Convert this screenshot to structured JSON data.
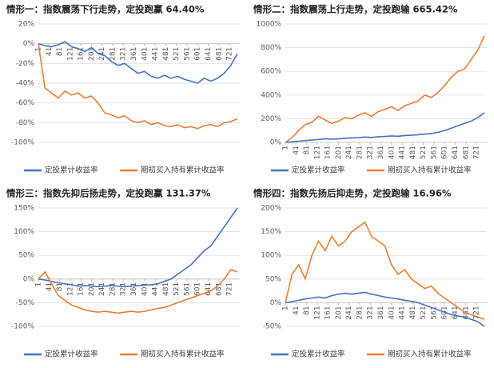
{
  "chart_data": [
    {
      "type": "line",
      "title": "情形一：指数震荡下行走势，定投跑赢 64.40%",
      "x": [
        1,
        26,
        51,
        76,
        101,
        126,
        151,
        176,
        201,
        226,
        251,
        276,
        301,
        326,
        351,
        376,
        401,
        426,
        451,
        476,
        501,
        526,
        551,
        576,
        601,
        626,
        651,
        676,
        701,
        726,
        751
      ],
      "xlim": [
        1,
        760
      ],
      "xticks": [
        1,
        41,
        81,
        121,
        161,
        201,
        241,
        281,
        321,
        361,
        401,
        441,
        481,
        521,
        561,
        601,
        641,
        681,
        721
      ],
      "ylim": [
        -100,
        20
      ],
      "yticks": [
        {
          "value": -100,
          "label": "-100%"
        },
        {
          "value": -80,
          "label": "-80%"
        },
        {
          "value": -60,
          "label": "-60%"
        },
        {
          "value": -40,
          "label": "-40%"
        },
        {
          "value": -20,
          "label": "-20%"
        },
        {
          "value": 0,
          "label": "0%"
        },
        {
          "value": 20,
          "label": "20%"
        }
      ],
      "series": [
        {
          "name": "定投累计收益率",
          "color": "#4472c4",
          "values": [
            0,
            -2,
            -3,
            -1,
            2,
            -3,
            -5,
            -8,
            -4,
            -10,
            -12,
            -18,
            -22,
            -20,
            -25,
            -30,
            -28,
            -33,
            -35,
            -32,
            -35,
            -33,
            -36,
            -38,
            -40,
            -35,
            -38,
            -35,
            -30,
            -22,
            -10
          ]
        },
        {
          "name": "期初买入持有累计收益率",
          "color": "#ed7d31",
          "values": [
            0,
            -45,
            -50,
            -55,
            -48,
            -52,
            -50,
            -55,
            -53,
            -60,
            -70,
            -72,
            -75,
            -73,
            -78,
            -80,
            -78,
            -82,
            -80,
            -83,
            -84,
            -82,
            -85,
            -84,
            -86,
            -83,
            -82,
            -84,
            -80,
            -79,
            -76
          ]
        }
      ]
    },
    {
      "type": "line",
      "title": "情形二：指数震荡上行走势，定投跑输 665.42%",
      "x": [
        1,
        26,
        51,
        76,
        101,
        126,
        151,
        176,
        201,
        226,
        251,
        276,
        301,
        326,
        351,
        376,
        401,
        426,
        451,
        476,
        501,
        526,
        551,
        576,
        601,
        626,
        651,
        676,
        701,
        726,
        751
      ],
      "xlim": [
        1,
        760
      ],
      "xticks": [
        1,
        41,
        81,
        121,
        161,
        201,
        241,
        281,
        321,
        361,
        401,
        441,
        481,
        521,
        561,
        601,
        641,
        681,
        721
      ],
      "ylim": [
        0,
        1000
      ],
      "yticks": [
        {
          "value": 0,
          "label": "0%"
        },
        {
          "value": 200,
          "label": "200%"
        },
        {
          "value": 400,
          "label": "400%"
        },
        {
          "value": 600,
          "label": "600%"
        },
        {
          "value": 800,
          "label": "800%"
        },
        {
          "value": 1000,
          "label": "1000%"
        }
      ],
      "series": [
        {
          "name": "定投累计收益率",
          "color": "#4472c4",
          "values": [
            0,
            5,
            10,
            15,
            20,
            25,
            30,
            28,
            30,
            35,
            38,
            40,
            45,
            42,
            48,
            50,
            55,
            52,
            58,
            60,
            65,
            70,
            75,
            85,
            100,
            120,
            140,
            160,
            180,
            210,
            250
          ]
        },
        {
          "name": "期初买入持有累计收益率",
          "color": "#ed7d31",
          "values": [
            0,
            40,
            100,
            150,
            170,
            220,
            190,
            160,
            180,
            210,
            200,
            230,
            250,
            220,
            260,
            280,
            300,
            270,
            310,
            330,
            350,
            400,
            380,
            420,
            480,
            550,
            600,
            620,
            700,
            780,
            900
          ]
        }
      ]
    },
    {
      "type": "line",
      "title": "情形三：指数先抑后扬走势，定投跑赢 131.37%",
      "x": [
        1,
        26,
        51,
        76,
        101,
        126,
        151,
        176,
        201,
        226,
        251,
        276,
        301,
        326,
        351,
        376,
        401,
        426,
        451,
        476,
        501,
        526,
        551,
        576,
        601,
        626,
        651,
        676,
        701,
        726,
        751
      ],
      "xlim": [
        1,
        760
      ],
      "xticks": [
        1,
        41,
        81,
        121,
        161,
        201,
        241,
        281,
        321,
        361,
        401,
        441,
        481,
        521,
        561,
        601,
        641,
        681,
        721
      ],
      "ylim": [
        -100,
        150
      ],
      "yticks": [
        {
          "value": -100,
          "label": "-100%"
        },
        {
          "value": -50,
          "label": "-50%"
        },
        {
          "value": 0,
          "label": "0%"
        },
        {
          "value": 50,
          "label": "50%"
        },
        {
          "value": 100,
          "label": "100%"
        },
        {
          "value": 150,
          "label": "150%"
        }
      ],
      "series": [
        {
          "name": "定投累计收益率",
          "color": "#4472c4",
          "values": [
            0,
            -2,
            -5,
            -8,
            -10,
            -12,
            -15,
            -14,
            -15,
            -16,
            -15,
            -14,
            -15,
            -16,
            -15,
            -14,
            -13,
            -12,
            -10,
            -5,
            0,
            10,
            20,
            30,
            45,
            60,
            70,
            90,
            110,
            130,
            150
          ]
        },
        {
          "name": "期初买入持有累计收益率",
          "color": "#ed7d31",
          "values": [
            0,
            15,
            -10,
            -35,
            -45,
            -55,
            -60,
            -65,
            -68,
            -70,
            -68,
            -70,
            -72,
            -70,
            -68,
            -70,
            -68,
            -65,
            -62,
            -60,
            -55,
            -50,
            -45,
            -40,
            -35,
            -30,
            -25,
            -15,
            0,
            20,
            15
          ]
        }
      ]
    },
    {
      "type": "line",
      "title": "情形四：指数先扬后抑走势，定投跑输 16.96%",
      "x": [
        1,
        26,
        51,
        76,
        101,
        126,
        151,
        176,
        201,
        226,
        251,
        276,
        301,
        326,
        351,
        376,
        401,
        426,
        451,
        476,
        501,
        526,
        551,
        576,
        601,
        626,
        651,
        676,
        701,
        726,
        751
      ],
      "xlim": [
        1,
        760
      ],
      "xticks": [
        1,
        41,
        81,
        121,
        161,
        201,
        241,
        281,
        321,
        361,
        401,
        441,
        481,
        521,
        561,
        601,
        641,
        681,
        721
      ],
      "ylim": [
        -50,
        200
      ],
      "yticks": [
        {
          "value": -50,
          "label": "-50%"
        },
        {
          "value": 0,
          "label": "0%"
        },
        {
          "value": 50,
          "label": "50%"
        },
        {
          "value": 100,
          "label": "100%"
        },
        {
          "value": 150,
          "label": "150%"
        },
        {
          "value": 200,
          "label": "200%"
        }
      ],
      "series": [
        {
          "name": "定投累计收益率",
          "color": "#4472c4",
          "values": [
            0,
            2,
            5,
            8,
            10,
            12,
            10,
            15,
            18,
            20,
            18,
            20,
            22,
            18,
            15,
            12,
            10,
            8,
            5,
            3,
            0,
            -5,
            -10,
            -15,
            -20,
            -25,
            -28,
            -30,
            -35,
            -40,
            -50
          ]
        },
        {
          "name": "期初买入持有累计收益率",
          "color": "#ed7d31",
          "values": [
            0,
            60,
            80,
            50,
            100,
            130,
            110,
            140,
            120,
            130,
            150,
            160,
            170,
            140,
            130,
            120,
            80,
            60,
            70,
            50,
            40,
            30,
            35,
            20,
            10,
            0,
            -10,
            -20,
            -25,
            -30,
            -35
          ]
        }
      ]
    }
  ]
}
